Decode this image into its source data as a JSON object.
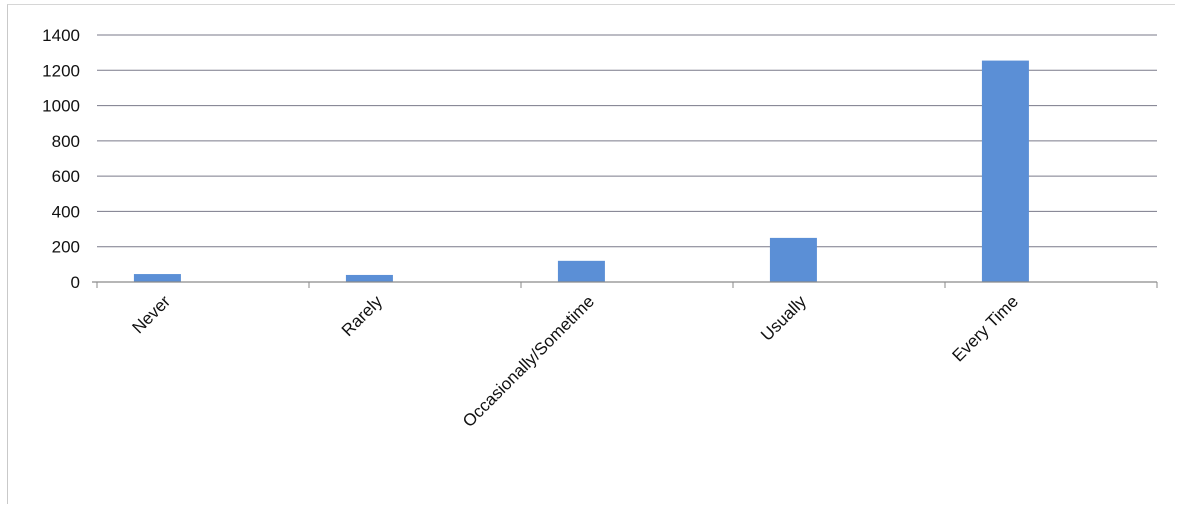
{
  "chart_data": {
    "type": "bar",
    "categories": [
      "Never",
      "Rarely",
      "Occasionally/Sometime",
      "Usually",
      "Every Time"
    ],
    "values": [
      45,
      40,
      120,
      250,
      1255
    ],
    "ylim": [
      0,
      1400
    ],
    "yticks": [
      0,
      200,
      400,
      600,
      800,
      1000,
      1200,
      1400
    ],
    "ytick_labels": [
      "0",
      "200",
      "400",
      "600",
      "800",
      "1000",
      "1200",
      "1400"
    ],
    "grid": true,
    "legend": "none",
    "bar_color": "#5b8fd6",
    "grid_color": "#7a7a8a"
  }
}
